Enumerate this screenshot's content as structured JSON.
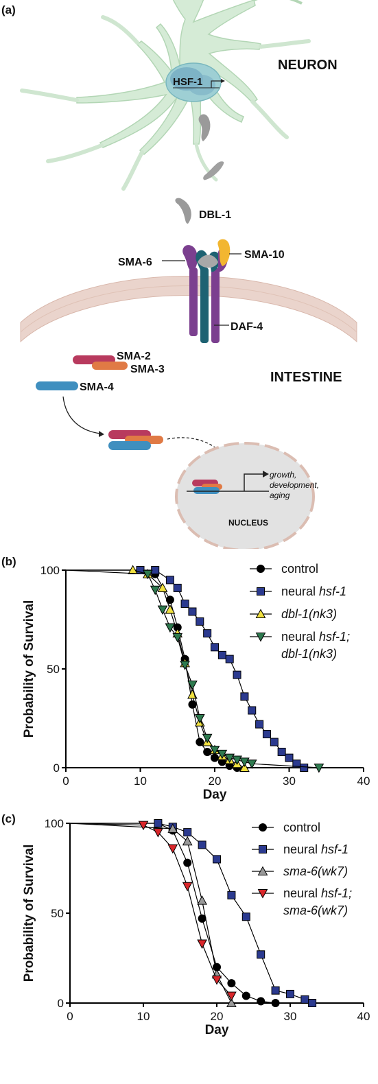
{
  "panel_a": {
    "label": "(a)",
    "neuron": "NEURON",
    "hsf1": "HSF-1",
    "dbl1": "DBL-1",
    "sma6": "SMA-6",
    "sma10": "SMA-10",
    "daf4": "DAF-4",
    "sma2": "SMA-2",
    "sma3": "SMA-3",
    "sma4": "SMA-4",
    "intestine": "INTESTINE",
    "nucleus": "NUCLEUS",
    "out1": "growth,",
    "out2": "development,",
    "out3": "aging",
    "colors": {
      "neuron_fill": "#d5ebd6",
      "membrane": "#e4c7bd",
      "nucleus_fill": "#e2e2e2",
      "sma2": "#b83a5e",
      "sma3": "#e07a45",
      "sma4": "#3f8fbf",
      "receptor_purple": "#7b3f8f",
      "receptor_teal": "#1e6272",
      "sma10": "#f2b630"
    }
  },
  "chart_data": [
    {
      "panel": "(b)",
      "type": "line",
      "xlabel": "Day",
      "ylabel": "Probability of Survival",
      "xlim": [
        0,
        40
      ],
      "ylim": [
        0,
        100
      ],
      "xticks": [
        0,
        10,
        20,
        30,
        40
      ],
      "yticks": [
        0,
        50,
        100
      ],
      "legend_position": "top-right",
      "series": [
        {
          "name": "control",
          "legend_rest": "",
          "legend_line2": "",
          "italic": false,
          "marker": "circle",
          "color": "#000000",
          "x": [
            0,
            10,
            12,
            14,
            15,
            16,
            17,
            18,
            19,
            20,
            21,
            22,
            23
          ],
          "y": [
            100,
            100,
            98,
            85,
            71,
            55,
            32,
            13,
            8,
            5,
            3,
            1,
            0
          ]
        },
        {
          "name": "neural ",
          "legend_rest": "hsf-1",
          "legend_line2": "",
          "italic": false,
          "marker": "square",
          "color": "#2b3a8f",
          "x": [
            0,
            10,
            12,
            14,
            15,
            16,
            17,
            18,
            19,
            20,
            21,
            22,
            23,
            24,
            25,
            26,
            27,
            28,
            29,
            30,
            31,
            32
          ],
          "y": [
            100,
            100,
            100,
            95,
            91,
            83,
            79,
            74,
            68,
            61,
            57,
            55,
            47,
            36,
            29,
            22,
            17,
            13,
            8,
            5,
            2,
            0
          ]
        },
        {
          "name": "dbl-1(nk3)",
          "legend_rest": "",
          "legend_line2": "",
          "italic": true,
          "marker": "triangle-up",
          "color": "#f0e040",
          "x": [
            0,
            9,
            11,
            13,
            14,
            15,
            16,
            17,
            18,
            19,
            20,
            21,
            22,
            23,
            24
          ],
          "y": [
            100,
            100,
            98,
            91,
            80,
            68,
            53,
            37,
            23,
            13,
            9,
            6,
            4,
            2,
            0
          ]
        },
        {
          "name": "neural ",
          "legend_rest": "hsf-1;",
          "legend_line2": "dbl-1(nk3)",
          "italic": false,
          "marker": "triangle-down",
          "color": "#2e7a4f",
          "x": [
            0,
            11,
            12,
            13,
            14,
            15,
            16,
            17,
            18,
            19,
            20,
            21,
            22,
            23,
            24,
            25,
            34
          ],
          "y": [
            100,
            98,
            90,
            80,
            71,
            66,
            52,
            42,
            25,
            15,
            9,
            7,
            5,
            4,
            3,
            2,
            0
          ]
        }
      ]
    },
    {
      "panel": "(c)",
      "type": "line",
      "xlabel": "Day",
      "ylabel": "Probability of Survival",
      "xlim": [
        0,
        40
      ],
      "ylim": [
        0,
        100
      ],
      "xticks": [
        0,
        10,
        20,
        30,
        40
      ],
      "yticks": [
        0,
        50,
        100
      ],
      "legend_position": "top-right",
      "series": [
        {
          "name": "control",
          "legend_rest": "",
          "legend_line2": "",
          "italic": false,
          "marker": "circle",
          "color": "#000000",
          "x": [
            0,
            12,
            14,
            16,
            18,
            20,
            22,
            24,
            26,
            28
          ],
          "y": [
            100,
            100,
            96,
            78,
            47,
            20,
            11,
            4,
            1,
            0
          ]
        },
        {
          "name": "neural ",
          "legend_rest": "hsf-1",
          "legend_line2": "",
          "italic": false,
          "marker": "square",
          "color": "#2b3a8f",
          "x": [
            0,
            12,
            14,
            16,
            18,
            20,
            22,
            24,
            26,
            28,
            30,
            32,
            33
          ],
          "y": [
            100,
            100,
            98,
            95,
            88,
            80,
            60,
            48,
            27,
            7,
            5,
            2,
            0
          ]
        },
        {
          "name": "sma-6(wk7)",
          "legend_rest": "",
          "legend_line2": "",
          "italic": true,
          "marker": "triangle-up",
          "color": "#999999",
          "x": [
            0,
            14,
            16,
            18,
            20,
            22
          ],
          "y": [
            100,
            97,
            90,
            57,
            16,
            0
          ]
        },
        {
          "name": "neural ",
          "legend_rest": "hsf-1;",
          "legend_line2": "sma-6(wk7)",
          "italic": false,
          "marker": "triangle-down",
          "color": "#d9262a",
          "x": [
            0,
            10,
            12,
            14,
            16,
            18,
            20,
            22
          ],
          "y": [
            100,
            99,
            95,
            86,
            65,
            33,
            13,
            4
          ]
        }
      ]
    }
  ]
}
